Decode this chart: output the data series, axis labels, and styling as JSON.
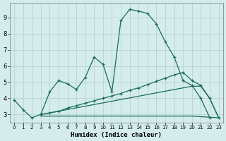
{
  "xlabel": "Humidex (Indice chaleur)",
  "bg_color": "#d4ecec",
  "grid_color": "#b8d4d4",
  "line_color": "#1a6b5a",
  "xlim": [
    -0.5,
    23.5
  ],
  "ylim": [
    2.5,
    9.9
  ],
  "xticks": [
    0,
    1,
    2,
    3,
    4,
    5,
    6,
    7,
    8,
    9,
    10,
    11,
    12,
    13,
    14,
    15,
    16,
    17,
    18,
    19,
    20,
    21,
    22,
    23
  ],
  "yticks": [
    3,
    4,
    5,
    6,
    7,
    8,
    9
  ],
  "line1_x": [
    0,
    1,
    2,
    3,
    4,
    5,
    6,
    7,
    8,
    9,
    10,
    11,
    12,
    13,
    14,
    15,
    16,
    17,
    18,
    19,
    20,
    21,
    22
  ],
  "line1_y": [
    3.9,
    3.3,
    2.8,
    3.0,
    4.4,
    5.1,
    4.9,
    4.55,
    5.3,
    6.55,
    6.1,
    4.4,
    8.8,
    9.5,
    9.4,
    9.25,
    8.6,
    7.5,
    6.55,
    5.1,
    4.8,
    4.0,
    2.8
  ],
  "line2_x": [
    3,
    4,
    5,
    6,
    7,
    8,
    9,
    10,
    11,
    12,
    13,
    14,
    15,
    16,
    17,
    18,
    19,
    20,
    21,
    22,
    23
  ],
  "line2_y": [
    3.0,
    3.1,
    3.2,
    3.4,
    3.55,
    3.7,
    3.85,
    4.0,
    4.15,
    4.3,
    4.5,
    4.65,
    4.85,
    5.05,
    5.25,
    5.45,
    5.6,
    5.1,
    4.8,
    4.0,
    2.8
  ],
  "line3_x": [
    3,
    20,
    21,
    22,
    23
  ],
  "line3_y": [
    3.0,
    4.75,
    4.75,
    4.0,
    2.8
  ],
  "line4_x": [
    3,
    20,
    23
  ],
  "line4_y": [
    2.9,
    2.9,
    2.8
  ]
}
